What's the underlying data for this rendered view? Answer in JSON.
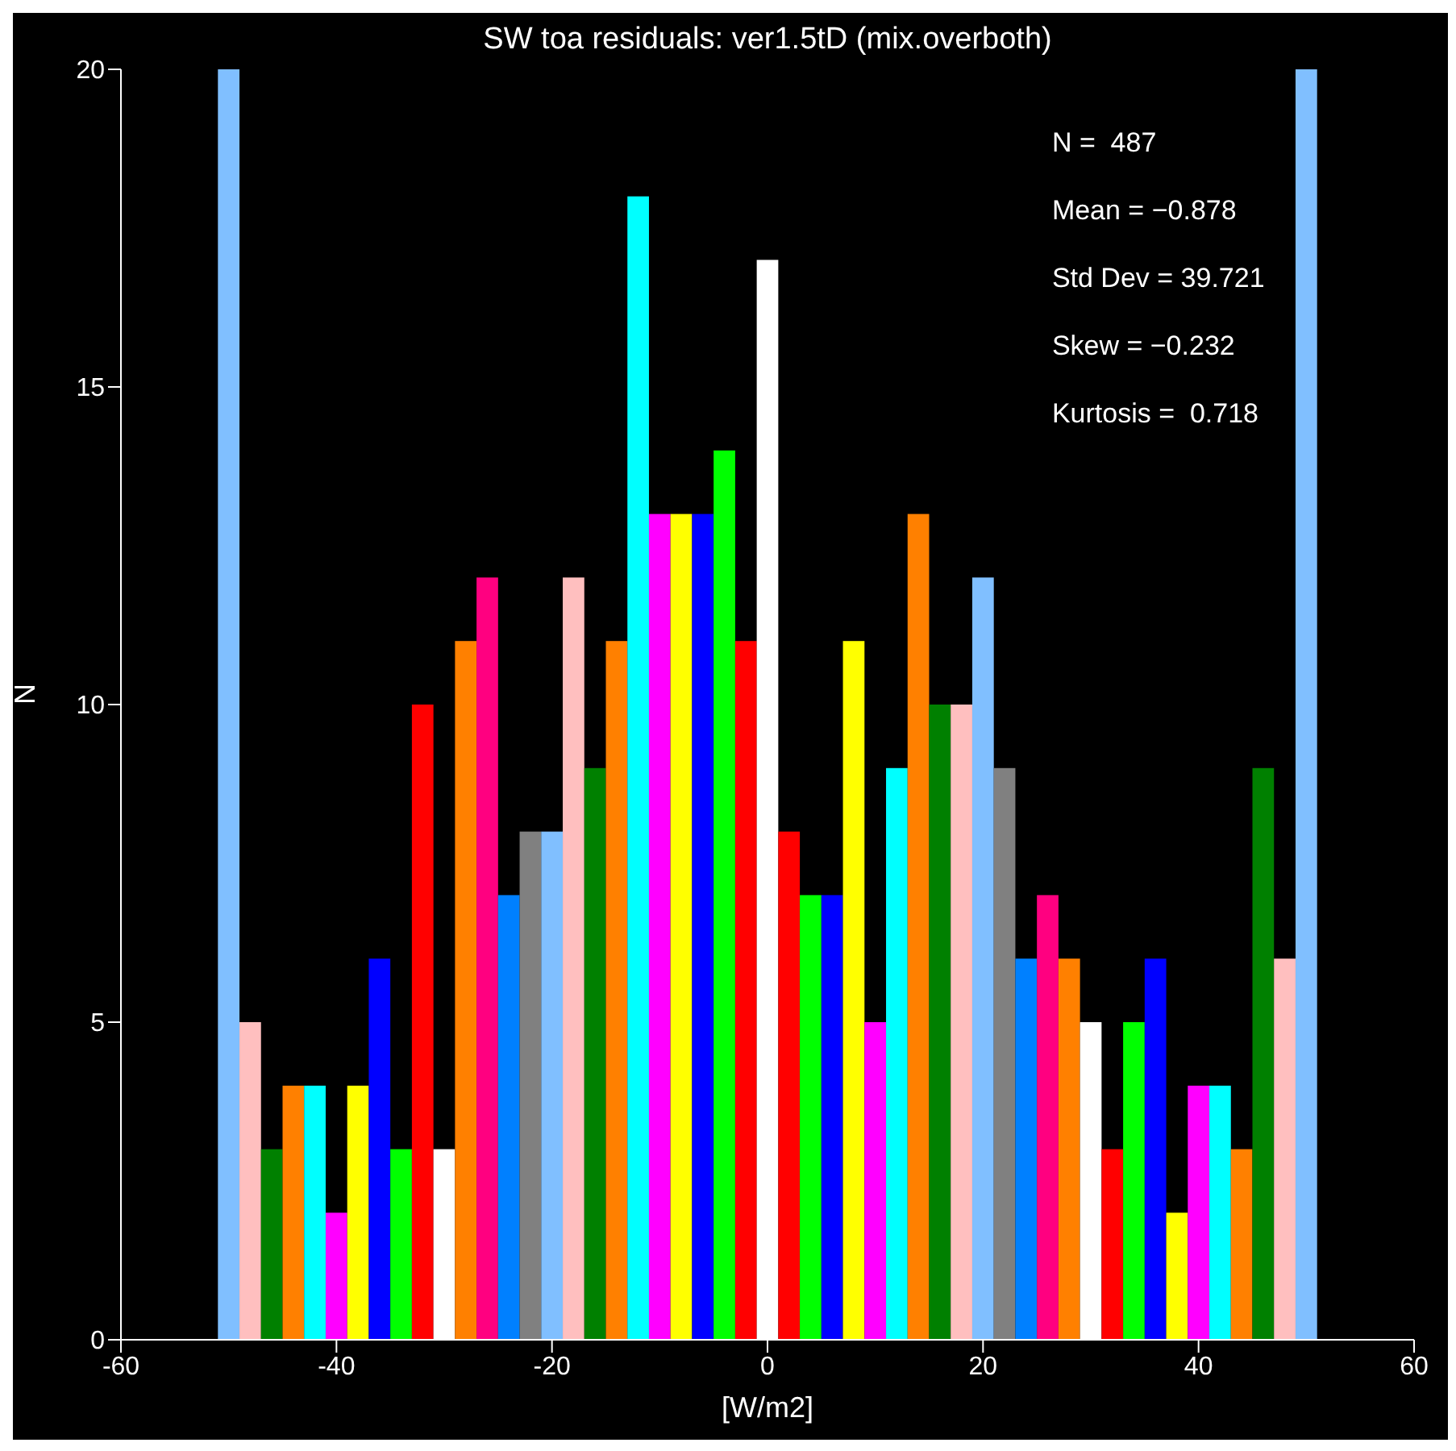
{
  "chart_data": {
    "type": "histogram",
    "title": "SW toa residuals: ver1.5tD (mix.overboth)",
    "xlabel": "[W/m2]",
    "ylabel": "N",
    "bins": [
      -51,
      -49,
      -47,
      -45,
      -43,
      -41,
      -39,
      -37,
      -35,
      -33,
      -31,
      -29,
      -27,
      -25,
      -23,
      -21,
      -19,
      -17,
      -15,
      -13,
      -11,
      -9,
      -7,
      -5,
      -3,
      -1,
      1,
      3,
      5,
      7,
      9,
      11,
      13,
      15,
      17,
      19,
      21,
      23,
      25,
      27,
      29,
      31,
      33,
      35,
      37,
      39,
      41,
      43,
      45,
      47,
      49,
      51
    ],
    "values": [
      20,
      5,
      3,
      4,
      4,
      2,
      4,
      6,
      3,
      10,
      3,
      11,
      12,
      7,
      8,
      8,
      12,
      9,
      11,
      18,
      13,
      13,
      13,
      14,
      11,
      17,
      8,
      7,
      7,
      11,
      5,
      9,
      13,
      10,
      10,
      12,
      9,
      6,
      7,
      6,
      5,
      3,
      5,
      6,
      2,
      4,
      4,
      3,
      9,
      6,
      20
    ],
    "colors": [
      "#80bfff",
      "#ffbfbf",
      "#008000",
      "#ff8000",
      "#00ffff",
      "#ff00ff",
      "#ffff00",
      "#0000ff",
      "#00ff00",
      "#ff0000",
      "#ffffff",
      "#ff8000",
      "#ff0080",
      "#0080ff",
      "#808080",
      "#80bfff",
      "#ffbfbf",
      "#008000",
      "#ff8000",
      "#00ffff",
      "#ff00ff",
      "#ffff00",
      "#0000ff",
      "#00ff00",
      "#ff0000",
      "#ffffff",
      "#ff0000",
      "#00ff00",
      "#0000ff",
      "#ffff00",
      "#ff00ff",
      "#00ffff",
      "#ff8000",
      "#008000",
      "#ffbfbf",
      "#80bfff",
      "#808080",
      "#0080ff",
      "#ff0080",
      "#ff8000",
      "#ffffff",
      "#ff0000",
      "#00ff00",
      "#0000ff",
      "#ffff00",
      "#ff00ff",
      "#00ffff",
      "#ff8000",
      "#008000",
      "#ffbfbf",
      "#80bfff"
    ],
    "xlim": [
      -60,
      60
    ],
    "xticks": [
      -60,
      -40,
      -20,
      0,
      20,
      40,
      60
    ],
    "ylim": [
      0,
      20
    ],
    "yticks": [
      0,
      5,
      10,
      15,
      20
    ],
    "annotations": [
      "N =  487",
      "Mean = −0.878",
      "Std Dev = 39.721",
      "Skew = −0.232",
      "Kurtosis =  0.718"
    ]
  }
}
